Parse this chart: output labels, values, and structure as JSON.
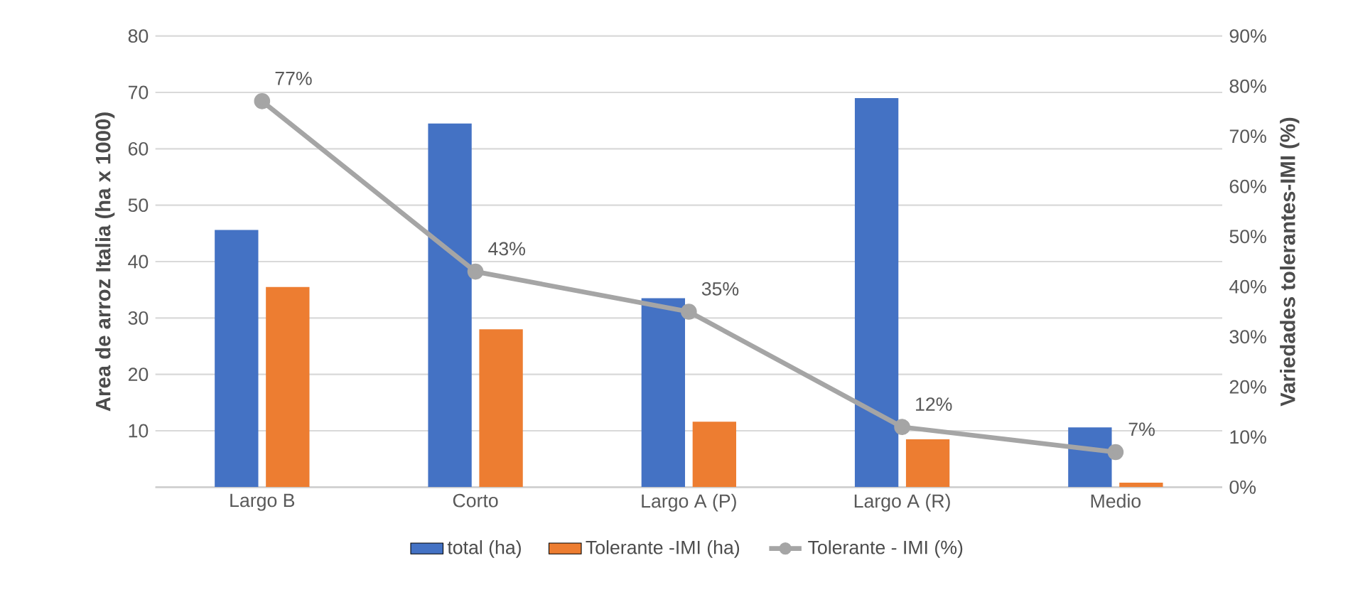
{
  "chart_data": {
    "type": "bar",
    "categories": [
      "Largo B",
      "Corto",
      "Largo A (P)",
      "Largo A (R)",
      "Medio"
    ],
    "ylabel": "Area de arroz Italia (ha x 1000)",
    "y2label": "Variedades tolerantes-IMI  (%)",
    "series": [
      {
        "name": "total (ha)",
        "color": "#4472c4",
        "values": [
          45.6,
          64.5,
          33.5,
          69,
          10.6
        ]
      },
      {
        "name": "Tolerante -IMI (ha)",
        "color": "#ed7d31",
        "values": [
          35.5,
          28,
          11.6,
          8.5,
          0.8
        ]
      },
      {
        "name": "Tolerante - IMI (%)",
        "type": "line",
        "axis": "y2",
        "color": "#a5a5a5",
        "marker": "circle",
        "values": [
          77,
          43,
          35,
          12,
          7
        ],
        "value_labels": [
          "77%",
          "43%",
          "35%",
          "12%",
          "7%"
        ]
      }
    ],
    "ylim": [
      0,
      80
    ],
    "yticks": [
      {
        "value": 0,
        "label": null
      },
      10,
      20,
      30,
      40,
      50,
      60,
      70,
      80
    ],
    "y2lim": [
      0,
      90
    ],
    "y2ticks": [
      {
        "value": 0,
        "label": "0%"
      },
      {
        "value": 10,
        "label": "10%"
      },
      {
        "value": 20,
        "label": "20%"
      },
      {
        "value": 30,
        "label": "30%"
      },
      {
        "value": 40,
        "label": "40%"
      },
      {
        "value": 50,
        "label": "50%"
      },
      {
        "value": 60,
        "label": "60%"
      },
      {
        "value": 70,
        "label": "70%"
      },
      {
        "value": 80,
        "label": "80%"
      },
      {
        "value": 90,
        "label": "90%"
      }
    ],
    "grid": "y",
    "legend": "bottom"
  }
}
